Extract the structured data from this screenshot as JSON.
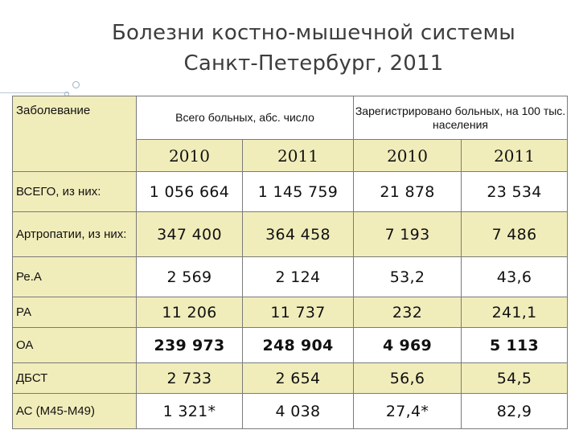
{
  "title": {
    "line1": "Болезни костно-мышечной системы",
    "line2": "Санкт-Петербург, 2011"
  },
  "table": {
    "header": {
      "disease": "Заболевание",
      "total": "Всего больных, абс. число",
      "registered": "Зарегистрировано больных, на 100 тыс. населения",
      "years": [
        "2010",
        "2011",
        "2010",
        "2011"
      ]
    },
    "rows": [
      {
        "label": "ВСЕГО, из них:",
        "values": [
          "1 056 664",
          "1 145 759",
          "21 878",
          "23 534"
        ],
        "bold": false
      },
      {
        "label": "Артропатии, из них:",
        "values": [
          "347 400",
          "364 458",
          "7 193",
          "7 486"
        ],
        "bold": false
      },
      {
        "label": "Ре.А",
        "values": [
          "2 569",
          "2 124",
          "53,2",
          "43,6"
        ],
        "bold": false
      },
      {
        "label": "РА",
        "values": [
          "11 206",
          "11 737",
          "232",
          "241,1"
        ],
        "bold": false
      },
      {
        "label": "ОА",
        "values": [
          "239 973",
          "248 904",
          "4 969",
          "5 113"
        ],
        "bold": true
      },
      {
        "label": "ДБСТ",
        "values": [
          "2 733",
          "2 654",
          "56,6",
          "54,5"
        ],
        "bold": false
      },
      {
        "label": "АС (М45-М49)",
        "values": [
          "1 321*",
          "4 038",
          "27,4*",
          "82,9"
        ],
        "bold": false
      }
    ]
  },
  "colors": {
    "accent_fill": "#f1edbb",
    "border": "#7a7a7a",
    "title_text": "#3d3d3d"
  }
}
